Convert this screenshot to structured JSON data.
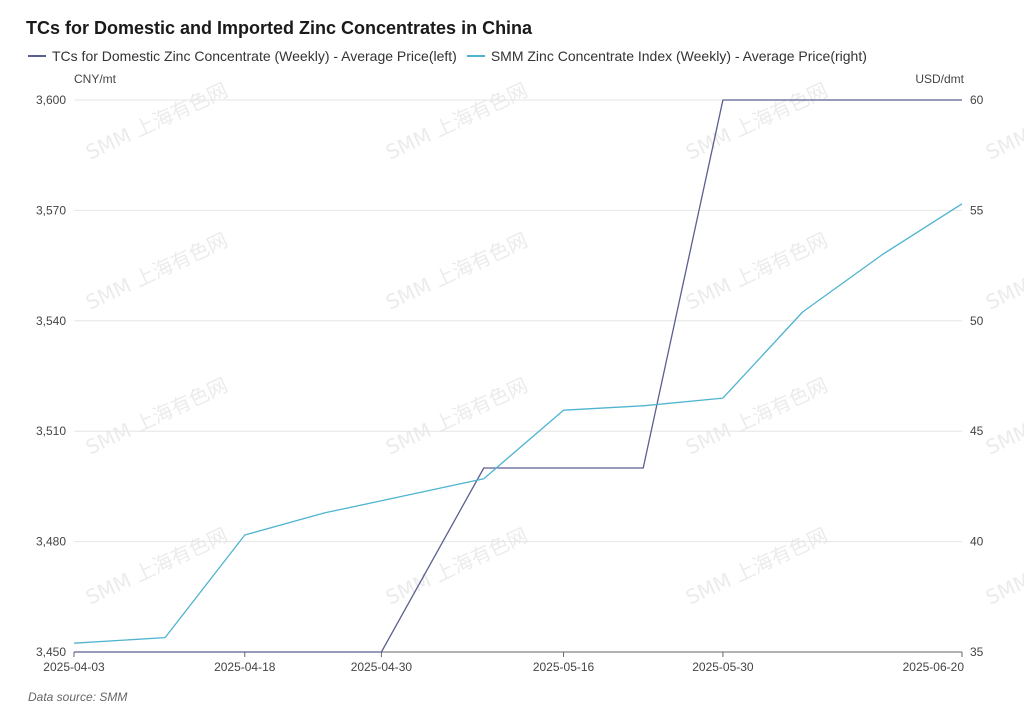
{
  "chart_data": {
    "type": "line",
    "title": "TCs for Domestic and Imported Zinc Concentrates in China",
    "source": "Data source:  SMM",
    "watermark": "SMM 上海有色网",
    "grid": true,
    "legend_position": "top-left",
    "y_left": {
      "unit": "CNY/mt",
      "min": 3450,
      "max": 3600,
      "ticks": [
        3450,
        3480,
        3510,
        3540,
        3570,
        3600
      ],
      "tick_labels": [
        "3,450",
        "3,480",
        "3,510",
        "3,540",
        "3,570",
        "3,600"
      ]
    },
    "y_right": {
      "unit": "USD/dmt",
      "min": 35,
      "max": 60,
      "ticks": [
        35,
        40,
        45,
        50,
        55,
        60
      ],
      "tick_labels": [
        "35",
        "40",
        "45",
        "50",
        "55",
        "60"
      ]
    },
    "x": [
      "2025-04-03",
      "2025-04-11",
      "2025-04-18",
      "2025-04-25",
      "2025-04-30",
      "2025-05-09",
      "2025-05-16",
      "2025-05-23",
      "2025-05-30",
      "2025-06-06",
      "2025-06-13",
      "2025-06-20"
    ],
    "x_tick_labels": [
      "2025-04-03",
      "2025-04-18",
      "2025-04-30",
      "2025-05-16",
      "2025-05-30",
      "2025-06-20"
    ],
    "series": [
      {
        "name": "TCs for Domestic Zinc Concentrate (Weekly) - Average Price(left)",
        "axis": "left",
        "color": "#5b5f8f",
        "values": [
          3450,
          3450,
          3450,
          3450,
          3450,
          3500,
          3500,
          3500,
          3600,
          3600,
          3600,
          3600
        ]
      },
      {
        "name": "SMM Zinc Concentrate Index (Weekly) - Average Price(right)",
        "axis": "right",
        "color": "#4fb4d0",
        "values": [
          35.4,
          35.65,
          40.3,
          41.3,
          41.85,
          42.85,
          45.95,
          46.15,
          46.5,
          50.4,
          53.0,
          55.3
        ]
      }
    ]
  }
}
